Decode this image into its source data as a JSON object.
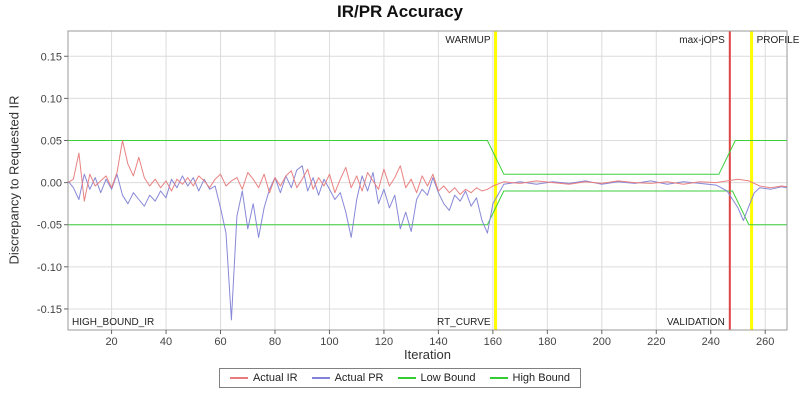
{
  "chart_data": {
    "type": "line",
    "title": "IR/PR Accuracy",
    "xlabel": "Iteration",
    "ylabel": "Discrepancy to Requested IR",
    "xlim": [
      4,
      268
    ],
    "ylim": [
      -0.175,
      0.18
    ],
    "x_ticks": [
      20,
      40,
      60,
      80,
      100,
      120,
      140,
      160,
      180,
      200,
      220,
      240,
      260
    ],
    "y_ticks": [
      -0.15,
      -0.1,
      -0.05,
      0.0,
      0.05,
      0.1,
      0.15
    ],
    "grid": true,
    "legend_position": "bottom",
    "series": [
      {
        "name": "Actual IR",
        "color": "#e87b7b",
        "points": [
          [
            4,
            0
          ],
          [
            6,
            0.004
          ],
          [
            8,
            0.035
          ],
          [
            10,
            -0.022
          ],
          [
            12,
            0.01
          ],
          [
            14,
            -0.004
          ],
          [
            16,
            0.002
          ],
          [
            18,
            0.008
          ],
          [
            20,
            -0.006
          ],
          [
            22,
            0.012
          ],
          [
            24,
            0.05
          ],
          [
            26,
            0.022
          ],
          [
            28,
            0.008
          ],
          [
            30,
            0.03
          ],
          [
            32,
            0.006
          ],
          [
            34,
            -0.004
          ],
          [
            36,
            0.004
          ],
          [
            38,
            -0.006
          ],
          [
            40,
            0.002
          ],
          [
            42,
            -0.01
          ],
          [
            44,
            0.004
          ],
          [
            46,
            -0.002
          ],
          [
            48,
            0.006
          ],
          [
            50,
            -0.004
          ],
          [
            52,
            0.008
          ],
          [
            54,
            0.002
          ],
          [
            56,
            -0.006
          ],
          [
            58,
            0.004
          ],
          [
            60,
            0.01
          ],
          [
            62,
            -0.004
          ],
          [
            64,
            0.002
          ],
          [
            66,
            0.006
          ],
          [
            68,
            -0.008
          ],
          [
            70,
            0.012
          ],
          [
            72,
            0.004
          ],
          [
            74,
            -0.006
          ],
          [
            76,
            0.01
          ],
          [
            78,
            -0.012
          ],
          [
            80,
            0.006
          ],
          [
            82,
            -0.004
          ],
          [
            84,
            0.008
          ],
          [
            86,
            0.014
          ],
          [
            88,
            -0.006
          ],
          [
            90,
            0.004
          ],
          [
            92,
            0.016
          ],
          [
            94,
            -0.008
          ],
          [
            96,
            0.006
          ],
          [
            98,
            -0.004
          ],
          [
            100,
            0.01
          ],
          [
            102,
            -0.012
          ],
          [
            104,
            0.004
          ],
          [
            106,
            0.018
          ],
          [
            108,
            -0.006
          ],
          [
            110,
            0.008
          ],
          [
            112,
            -0.01
          ],
          [
            114,
            0.012
          ],
          [
            116,
            0.002
          ],
          [
            118,
            -0.008
          ],
          [
            120,
            0.016
          ],
          [
            122,
            -0.004
          ],
          [
            124,
            0.006
          ],
          [
            126,
            0.02
          ],
          [
            128,
            -0.006
          ],
          [
            130,
            0.004
          ],
          [
            132,
            -0.012
          ],
          [
            134,
            0.008
          ],
          [
            136,
            -0.004
          ],
          [
            138,
            0.01
          ],
          [
            140,
            -0.01
          ],
          [
            142,
            -0.004
          ],
          [
            144,
            -0.012
          ],
          [
            146,
            -0.006
          ],
          [
            148,
            -0.014
          ],
          [
            150,
            -0.008
          ],
          [
            152,
            -0.012
          ],
          [
            154,
            -0.006
          ],
          [
            156,
            -0.01
          ],
          [
            158,
            -0.008
          ],
          [
            160,
            -0.004
          ],
          [
            164,
            0.001
          ],
          [
            170,
            -0.001
          ],
          [
            176,
            0.002
          ],
          [
            182,
            0
          ],
          [
            188,
            -0.002
          ],
          [
            194,
            0.001
          ],
          [
            200,
            -0.001
          ],
          [
            206,
            0.002
          ],
          [
            212,
            0
          ],
          [
            218,
            -0.001
          ],
          [
            224,
            0.001
          ],
          [
            230,
            -0.002
          ],
          [
            236,
            0.001
          ],
          [
            242,
            0
          ],
          [
            246,
            0.002
          ],
          [
            250,
            0.004
          ],
          [
            254,
            0.002
          ],
          [
            258,
            -0.004
          ],
          [
            262,
            -0.006
          ],
          [
            266,
            -0.004
          ],
          [
            268,
            -0.005
          ]
        ]
      },
      {
        "name": "Actual PR",
        "color": "#8282d6",
        "points": [
          [
            4,
            0.002
          ],
          [
            6,
            -0.006
          ],
          [
            8,
            -0.02
          ],
          [
            10,
            0.01
          ],
          [
            12,
            -0.008
          ],
          [
            14,
            0.006
          ],
          [
            16,
            -0.012
          ],
          [
            18,
            0.004
          ],
          [
            20,
            -0.008
          ],
          [
            22,
            0.01
          ],
          [
            24,
            -0.015
          ],
          [
            26,
            -0.025
          ],
          [
            28,
            -0.012
          ],
          [
            30,
            -0.02
          ],
          [
            32,
            -0.028
          ],
          [
            34,
            -0.015
          ],
          [
            36,
            -0.022
          ],
          [
            38,
            -0.01
          ],
          [
            40,
            -0.018
          ],
          [
            42,
            0.004
          ],
          [
            44,
            -0.006
          ],
          [
            46,
            0.008
          ],
          [
            48,
            -0.004
          ],
          [
            50,
            0.006
          ],
          [
            52,
            -0.01
          ],
          [
            54,
            0.004
          ],
          [
            56,
            -0.008
          ],
          [
            58,
            -0.004
          ],
          [
            60,
            -0.03
          ],
          [
            62,
            -0.06
          ],
          [
            64,
            -0.163
          ],
          [
            66,
            -0.04
          ],
          [
            68,
            -0.01
          ],
          [
            70,
            -0.055
          ],
          [
            72,
            -0.025
          ],
          [
            74,
            -0.065
          ],
          [
            76,
            -0.03
          ],
          [
            78,
            -0.008
          ],
          [
            80,
            0.006
          ],
          [
            82,
            -0.012
          ],
          [
            84,
            0.008
          ],
          [
            86,
            -0.006
          ],
          [
            88,
            0.015
          ],
          [
            90,
            0.02
          ],
          [
            92,
            -0.01
          ],
          [
            94,
            0.006
          ],
          [
            96,
            -0.015
          ],
          [
            98,
            0.004
          ],
          [
            100,
            -0.008
          ],
          [
            102,
            -0.02
          ],
          [
            104,
            -0.012
          ],
          [
            106,
            -0.035
          ],
          [
            108,
            -0.065
          ],
          [
            110,
            -0.02
          ],
          [
            112,
            0.008
          ],
          [
            114,
            -0.01
          ],
          [
            116,
            0.012
          ],
          [
            118,
            -0.025
          ],
          [
            120,
            -0.008
          ],
          [
            122,
            -0.03
          ],
          [
            124,
            -0.015
          ],
          [
            126,
            -0.055
          ],
          [
            128,
            -0.035
          ],
          [
            130,
            -0.058
          ],
          [
            132,
            -0.02
          ],
          [
            134,
            -0.008
          ],
          [
            136,
            -0.015
          ],
          [
            138,
            0.006
          ],
          [
            140,
            -0.012
          ],
          [
            142,
            -0.025
          ],
          [
            144,
            -0.033
          ],
          [
            146,
            -0.015
          ],
          [
            148,
            -0.022
          ],
          [
            150,
            -0.01
          ],
          [
            152,
            -0.028
          ],
          [
            154,
            -0.018
          ],
          [
            156,
            -0.045
          ],
          [
            158,
            -0.06
          ],
          [
            160,
            -0.025
          ],
          [
            164,
            -0.002
          ],
          [
            170,
            0.001
          ],
          [
            176,
            -0.002
          ],
          [
            182,
            0.001
          ],
          [
            188,
            -0.001
          ],
          [
            194,
            0.002
          ],
          [
            200,
            -0.002
          ],
          [
            206,
            0.001
          ],
          [
            212,
            -0.001
          ],
          [
            218,
            0.002
          ],
          [
            224,
            -0.002
          ],
          [
            230,
            0.001
          ],
          [
            236,
            -0.001
          ],
          [
            242,
            -0.003
          ],
          [
            246,
            -0.01
          ],
          [
            250,
            -0.03
          ],
          [
            252,
            -0.045
          ],
          [
            254,
            -0.028
          ],
          [
            256,
            -0.012
          ],
          [
            258,
            -0.006
          ],
          [
            262,
            -0.008
          ],
          [
            266,
            -0.005
          ],
          [
            268,
            -0.006
          ]
        ]
      },
      {
        "name": "Low Bound",
        "color": "#33cc33",
        "points": [
          [
            4,
            -0.05
          ],
          [
            158,
            -0.05
          ],
          [
            164,
            -0.01
          ],
          [
            248,
            -0.01
          ],
          [
            254,
            -0.05
          ],
          [
            268,
            -0.05
          ]
        ]
      },
      {
        "name": "High Bound",
        "color": "#33cc33",
        "points": [
          [
            4,
            0.05
          ],
          [
            158,
            0.05
          ],
          [
            164,
            0.01
          ],
          [
            243,
            0.01
          ],
          [
            249,
            0.05
          ],
          [
            268,
            0.05
          ]
        ]
      }
    ],
    "markers": [
      {
        "x": 161,
        "color": "#ffff00",
        "width": 3,
        "top_label": "WARMUP",
        "top_side": "left",
        "bottom_label": "RT_CURVE",
        "bottom_side": "left"
      },
      {
        "x": 247,
        "color": "#dd4444",
        "width": 2,
        "top_label": "max-jOPS",
        "top_side": "left",
        "bottom_label": "VALIDATION",
        "bottom_side": "left"
      },
      {
        "x": 255,
        "color": "#ffff00",
        "width": 3,
        "top_label": "PROFILE",
        "top_side": "right",
        "bottom_label": "",
        "bottom_side": "right"
      }
    ],
    "corner_label": "HIGH_BOUND_IR"
  },
  "legend": {
    "items": [
      {
        "label": "Actual IR",
        "color": "#e87b7b"
      },
      {
        "label": "Actual PR",
        "color": "#8282d6"
      },
      {
        "label": "Low Bound",
        "color": "#33cc33"
      },
      {
        "label": "High Bound",
        "color": "#33cc33"
      }
    ]
  }
}
